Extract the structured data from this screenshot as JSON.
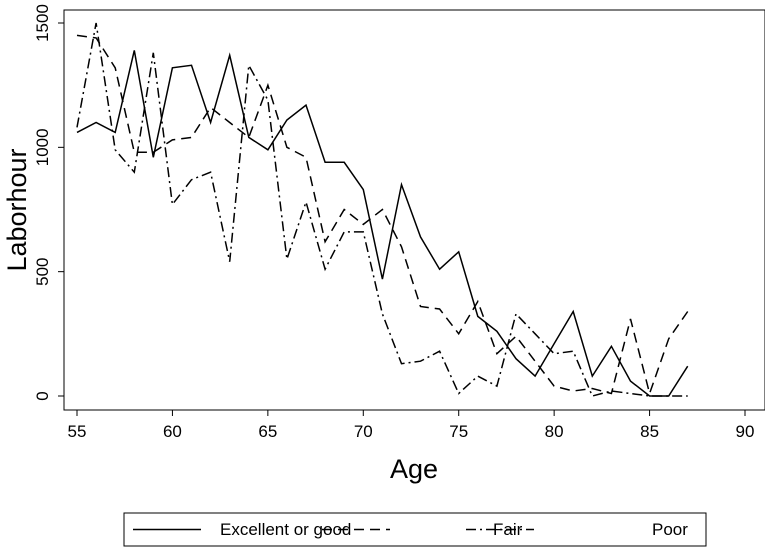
{
  "chart_data": {
    "type": "line",
    "title": "",
    "xlabel": "Age",
    "ylabel": "Laborhour",
    "xlim": [
      55,
      90
    ],
    "ylim": [
      0,
      1500
    ],
    "xticks": [
      "55",
      "60",
      "65",
      "70",
      "75",
      "80",
      "85",
      "90"
    ],
    "yticks": [
      "0",
      "500",
      "1000",
      "1500"
    ],
    "grid": false,
    "legend_position": "bottom",
    "series": [
      {
        "name": "Excellent or good",
        "dash": "solid",
        "x": [
          55,
          56,
          57,
          58,
          59,
          60,
          61,
          62,
          63,
          64,
          65,
          66,
          67,
          68,
          69,
          70,
          71,
          72,
          73,
          74,
          75,
          76,
          77,
          78,
          79,
          80,
          81,
          82,
          83,
          84,
          85,
          86,
          87
        ],
        "y": [
          1060,
          1100,
          1060,
          1390,
          960,
          1320,
          1330,
          1100,
          1370,
          1040,
          990,
          1110,
          1170,
          940,
          940,
          830,
          470,
          850,
          640,
          510,
          580,
          320,
          260,
          150,
          80,
          210,
          340,
          80,
          200,
          60,
          0,
          0,
          120
        ]
      },
      {
        "name": "Fair",
        "dash": "dash",
        "x": [
          55,
          56,
          57,
          58,
          59,
          60,
          61,
          62,
          63,
          64,
          65,
          66,
          67,
          68,
          69,
          70,
          71,
          72,
          73,
          74,
          75,
          76,
          77,
          78,
          79,
          80,
          81,
          82,
          83,
          84,
          85,
          86,
          87
        ],
        "y": [
          1450,
          1440,
          1320,
          980,
          980,
          1030,
          1040,
          1160,
          1100,
          1040,
          1250,
          1000,
          960,
          620,
          750,
          690,
          750,
          600,
          360,
          350,
          250,
          380,
          170,
          240,
          140,
          40,
          20,
          30,
          10,
          310,
          10,
          230,
          340
        ]
      },
      {
        "name": "Poor",
        "dash": "dashdot",
        "x": [
          55,
          56,
          57,
          58,
          59,
          60,
          61,
          62,
          63,
          64,
          65,
          66,
          67,
          68,
          69,
          70,
          71,
          72,
          73,
          74,
          75,
          76,
          77,
          78,
          79,
          80,
          81,
          82,
          83,
          84,
          85,
          86,
          87
        ],
        "y": [
          1080,
          1500,
          990,
          900,
          1380,
          770,
          870,
          900,
          540,
          1330,
          1190,
          550,
          780,
          510,
          660,
          660,
          330,
          130,
          140,
          180,
          10,
          80,
          40,
          330,
          250,
          170,
          180,
          0,
          20,
          10,
          0,
          0,
          0
        ]
      }
    ]
  }
}
